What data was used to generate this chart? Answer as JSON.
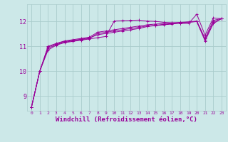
{
  "background_color": "#cce8e8",
  "grid_color": "#aacccc",
  "line_color": "#990099",
  "xlabel": "Windchill (Refroidissement éolien,°C)",
  "xlabel_fontsize": 6.5,
  "ylabel_ticks": [
    9,
    10,
    11,
    12
  ],
  "xtick_labels": [
    "0",
    "1",
    "2",
    "3",
    "4",
    "5",
    "6",
    "7",
    "8",
    "9",
    "10",
    "11",
    "12",
    "13",
    "14",
    "15",
    "16",
    "17",
    "18",
    "19",
    "20",
    "21",
    "22",
    "23"
  ],
  "ylim": [
    8.4,
    12.7
  ],
  "xlim": [
    -0.5,
    23.5
  ],
  "series": [
    [
      8.55,
      10.0,
      10.85,
      11.05,
      11.15,
      11.2,
      11.25,
      11.3,
      11.35,
      11.4,
      12.02,
      12.04,
      12.05,
      12.06,
      12.02,
      12.01,
      11.97,
      11.95,
      11.93,
      11.92,
      12.3,
      11.45,
      12.15,
      12.12
    ],
    [
      8.55,
      10.0,
      11.0,
      11.12,
      11.22,
      11.27,
      11.32,
      11.37,
      11.57,
      11.62,
      11.67,
      11.72,
      11.77,
      11.82,
      11.87,
      11.9,
      11.92,
      11.95,
      11.97,
      11.99,
      12.02,
      11.32,
      12.05,
      12.12
    ],
    [
      8.55,
      10.0,
      10.92,
      11.07,
      11.17,
      11.22,
      11.27,
      11.32,
      11.52,
      11.57,
      11.62,
      11.67,
      11.72,
      11.77,
      11.82,
      11.85,
      11.89,
      11.92,
      11.95,
      11.98,
      12.01,
      11.27,
      11.97,
      12.12
    ],
    [
      8.55,
      10.0,
      10.97,
      11.1,
      11.2,
      11.24,
      11.29,
      11.34,
      11.47,
      11.52,
      11.57,
      11.62,
      11.67,
      11.72,
      11.8,
      11.84,
      11.87,
      11.9,
      11.94,
      11.97,
      12.0,
      11.22,
      11.92,
      12.12
    ]
  ]
}
